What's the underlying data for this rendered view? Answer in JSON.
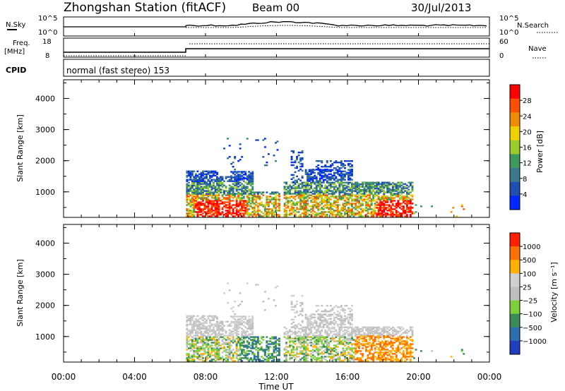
{
  "header": {
    "station": "Zhongshan Station (fitACF)",
    "beam": "Beam 00",
    "date": "30/Jul/2013"
  },
  "noise_panel": {
    "left_label": "N.Sky",
    "left_ticks": [
      "10^5",
      "10^0"
    ],
    "right_label": "N.Search",
    "right_ticks": [
      "10^5",
      "10^0"
    ]
  },
  "freq_panel": {
    "left_label_1": "Freq.",
    "left_label_2": "[MHz]",
    "left_ticks": [
      "18",
      "8"
    ],
    "right_label": "Nave",
    "right_ticks": [
      "60",
      "0"
    ]
  },
  "cpid": {
    "label": "CPID",
    "mode": "normal (fast stereo) 153"
  },
  "colors": {
    "power": [
      "#0028ff",
      "#1f4fb0",
      "#3a7a8c",
      "#3d9a5a",
      "#9ccc2c",
      "#f0d000",
      "#f08c00",
      "#ff5000",
      "#ff0000"
    ],
    "velocity": [
      "#1f3fbf",
      "#2b6fb0",
      "#3a8a5a",
      "#7cd03a",
      "#c0c0c0",
      "#d0d0d0",
      "#ffb000",
      "#ff7000",
      "#ff2000"
    ]
  },
  "chart_data": [
    {
      "type": "heatmap",
      "name": "power",
      "ylabel": "Slant Range [km]",
      "ylim": [
        180,
        4600
      ],
      "yticks": [
        "4000",
        "3000",
        "2000",
        "1000"
      ],
      "colorbar_label": "Power [dB]",
      "colorbar_ticks": [
        "28",
        "24",
        "20",
        "16",
        "12",
        "8",
        "4"
      ],
      "clim": [
        0,
        32
      ]
    },
    {
      "type": "heatmap",
      "name": "velocity",
      "ylabel": "Slant Range [km]",
      "ylim": [
        180,
        4600
      ],
      "yticks": [
        "4000",
        "3000",
        "2000",
        "1000"
      ],
      "colorbar_label": "Velocity [m s⁻¹]",
      "colorbar_ticks": [
        "1000",
        "500",
        "100",
        "25",
        "−25",
        "−100",
        "−500",
        "−1000"
      ]
    }
  ],
  "time_axis": {
    "xlabel": "Time UT",
    "ticks": [
      "00:00",
      "04:00",
      "08:00",
      "12:00",
      "16:00",
      "20:00",
      "00:00"
    ],
    "xlim": [
      "00:00",
      "24:00"
    ]
  }
}
